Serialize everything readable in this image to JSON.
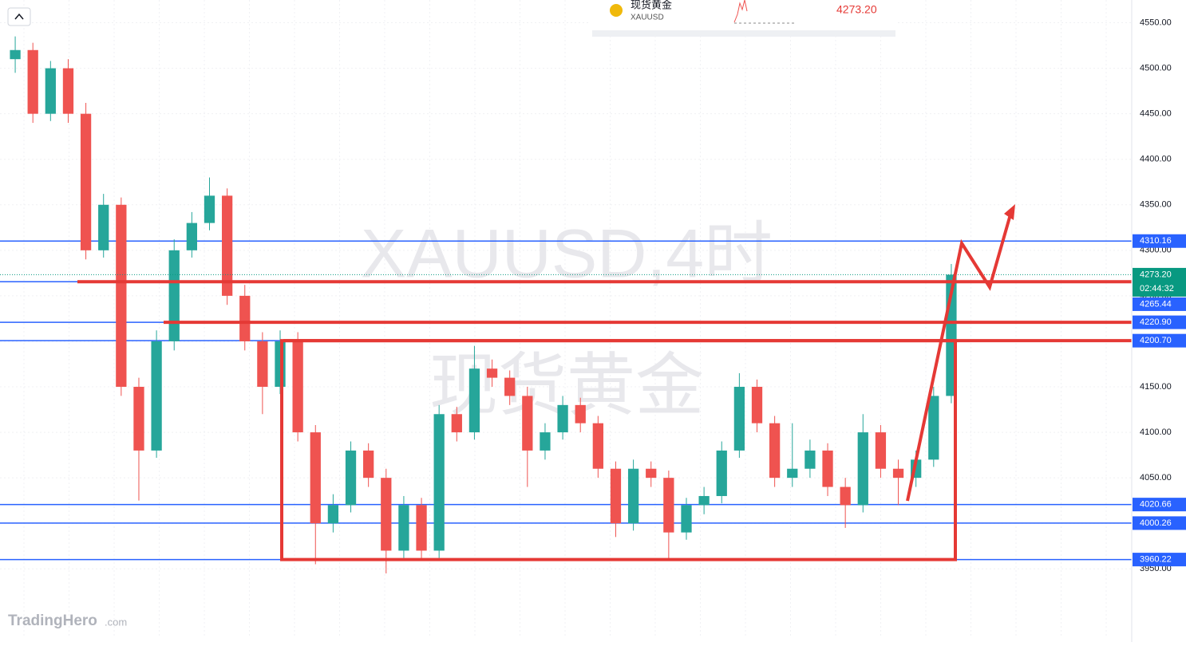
{
  "chart_data": {
    "type": "candlestick",
    "symbol_name": "现货黄金",
    "symbol": "XAUUSD",
    "widget_price": "4273.20",
    "watermark": "XAUUSD,4时",
    "watermark_name": "现货黄金",
    "logo": "TradingHero",
    "logo_suffix": ".com",
    "ylim": [
      3874,
      4575
    ],
    "yticks": [
      {
        "value": 3950,
        "label": "3950.00"
      },
      {
        "value": 4000,
        "label": "4000.00"
      },
      {
        "value": 4050,
        "label": "4050.00"
      },
      {
        "value": 4100,
        "label": "4100.00"
      },
      {
        "value": 4150,
        "label": "4150.00"
      },
      {
        "value": 4200,
        "label": "4200.00"
      },
      {
        "value": 4250,
        "label": "4250.00"
      },
      {
        "value": 4300,
        "label": "4300.00"
      },
      {
        "value": 4350,
        "label": "4350.00"
      },
      {
        "value": 4400,
        "label": "4400.00"
      },
      {
        "value": 4450,
        "label": "4450.00"
      },
      {
        "value": 4500,
        "label": "4500.00"
      },
      {
        "value": 4550,
        "label": "4550.00"
      }
    ],
    "grid": true,
    "up_color": "#26a69a",
    "down_color": "#ef5350",
    "level_color": "#2962ff",
    "drawing_color": "#e53935",
    "current_price": {
      "value": 4273.2,
      "label": "4273.20"
    },
    "current_color": "#089981",
    "countdown": "02:44:32",
    "levels": [
      4310.16,
      4265.44,
      {
        "value": 4220.9,
        "label": "4220.90"
      },
      {
        "value": 4200.7,
        "label": "4200.70"
      },
      4020.66,
      4000.26,
      3960.22
    ],
    "candles": [
      [
        4510,
        4535,
        4495,
        4520
      ],
      [
        4520,
        4528,
        4440,
        4450
      ],
      [
        4450,
        4508,
        4442,
        4500
      ],
      [
        4500,
        4510,
        4440,
        4450
      ],
      [
        4450,
        4462,
        4290,
        4300
      ],
      [
        4300,
        4362,
        4292,
        4350
      ],
      [
        4350,
        4358,
        4140,
        4150
      ],
      [
        4150,
        4160,
        4025,
        4080
      ],
      [
        4080,
        4212,
        4072,
        4200
      ],
      [
        4200,
        4312,
        4190,
        4300
      ],
      [
        4300,
        4342,
        4292,
        4330
      ],
      [
        4330,
        4380,
        4322,
        4360
      ],
      [
        4360,
        4368,
        4240,
        4250
      ],
      [
        4250,
        4262,
        4190,
        4200
      ],
      [
        4200,
        4210,
        4120,
        4150
      ],
      [
        4150,
        4212,
        4142,
        4200
      ],
      [
        4200,
        4210,
        4090,
        4100
      ],
      [
        4100,
        4108,
        3955,
        4000
      ],
      [
        4000,
        4032,
        3990,
        4020
      ],
      [
        4020,
        4090,
        4012,
        4080
      ],
      [
        4080,
        4088,
        4040,
        4050
      ],
      [
        4050,
        4060,
        3945,
        3970
      ],
      [
        3970,
        4030,
        3962,
        4020
      ],
      [
        4020,
        4028,
        3960,
        3970
      ],
      [
        3970,
        4130,
        3962,
        4120
      ],
      [
        4120,
        4128,
        4090,
        4100
      ],
      [
        4100,
        4195,
        4092,
        4170
      ],
      [
        4170,
        4180,
        4150,
        4160
      ],
      [
        4160,
        4168,
        4130,
        4140
      ],
      [
        4140,
        4150,
        4040,
        4080
      ],
      [
        4080,
        4110,
        4070,
        4100
      ],
      [
        4100,
        4140,
        4092,
        4130
      ],
      [
        4130,
        4138,
        4100,
        4110
      ],
      [
        4110,
        4118,
        4050,
        4060
      ],
      [
        4060,
        4068,
        3985,
        4000
      ],
      [
        4000,
        4070,
        3992,
        4060
      ],
      [
        4060,
        4068,
        4040,
        4050
      ],
      [
        4050,
        4058,
        3960,
        3990
      ],
      [
        3990,
        4028,
        3982,
        4020
      ],
      [
        4020,
        4040,
        4010,
        4030
      ],
      [
        4030,
        4090,
        4022,
        4080
      ],
      [
        4080,
        4165,
        4072,
        4150
      ],
      [
        4150,
        4158,
        4100,
        4110
      ],
      [
        4110,
        4118,
        4040,
        4050
      ],
      [
        4050,
        4110,
        4040,
        4060
      ],
      [
        4060,
        4092,
        4050,
        4080
      ],
      [
        4080,
        4088,
        4030,
        4040
      ],
      [
        4040,
        4050,
        3995,
        4020
      ],
      [
        4020,
        4120,
        4012,
        4100
      ],
      [
        4100,
        4108,
        4050,
        4060
      ],
      [
        4060,
        4070,
        4020,
        4050
      ],
      [
        4050,
        4080,
        4040,
        4070
      ],
      [
        4070,
        4150,
        4062,
        4140
      ],
      [
        4140,
        4285,
        4132,
        4273.2
      ]
    ]
  }
}
